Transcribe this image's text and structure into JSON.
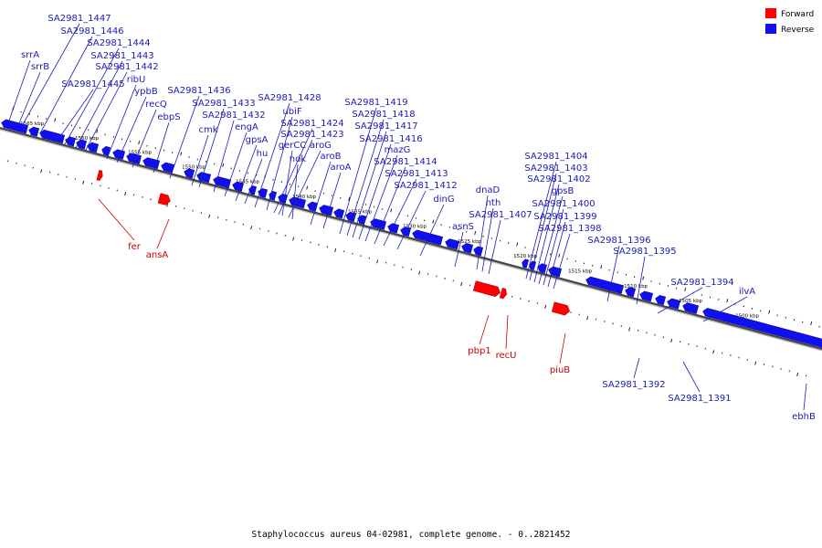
{
  "legend": {
    "forward": "Forward",
    "reverse": "Reverse"
  },
  "colors": {
    "forward": "#ff0000",
    "reverse": "#1010ee",
    "backbone": "#444444",
    "reverse_label": "#1a1ab8",
    "forward_label": "#cc0000"
  },
  "caption": "Staphylococcus aureus 04-02981, complete genome. - 0..2821452",
  "scale_labels": [
    "1565 kbp",
    "1560 kbp",
    "1555 kbp",
    "1550 kbp",
    "1545 kbp",
    "1540 kbp",
    "1535 kbp",
    "1530 kbp",
    "1525 kbp",
    "1520 kbp",
    "1515 kbp",
    "1510 kbp",
    "1505 kbp",
    "1500 kbp"
  ],
  "reverse_genes": [
    "SA2981_1447",
    "SA2981_1446",
    "SA2981_1444",
    "SA2981_1443",
    "SA2981_1442",
    "srrA",
    "srrB",
    "ribU",
    "SA2981_1445",
    "ypbB",
    "recQ",
    "ebpS",
    "SA2981_1436",
    "SA2981_1433",
    "SA2981_1432",
    "cmk",
    "engA",
    "gpsA",
    "hu",
    "SA2981_1428",
    "ubiF",
    "SA2981_1424",
    "SA2981_1423",
    "gerCC",
    "aroG",
    "ndk",
    "aroB",
    "aroA",
    "SA2981_1419",
    "SA2981_1418",
    "SA2981_1417",
    "SA2981_1416",
    "mazG",
    "SA2981_1414",
    "SA2981_1413",
    "SA2981_1412",
    "dinG",
    "dnaD",
    "nth",
    "SA2981_1407",
    "asnS",
    "SA2981_1404",
    "SA2981_1403",
    "SA2981_1402",
    "gpsB",
    "SA2981_1400",
    "SA2981_1399",
    "SA2981_1398",
    "SA2981_1396",
    "SA2981_1395",
    "SA2981_1394",
    "ilvA",
    "SA2981_1392",
    "SA2981_1391",
    "ebhB"
  ],
  "forward_genes": [
    "fer",
    "ansA",
    "pbp1",
    "recU",
    "piuB"
  ]
}
